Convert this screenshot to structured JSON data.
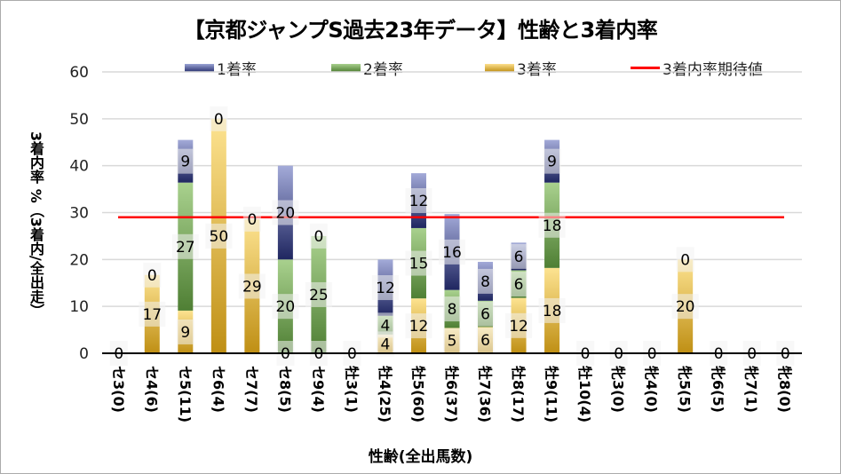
{
  "chart_data": {
    "type": "bar",
    "stacked": true,
    "title": "【京都ジャンプS過去23年データ】性齢と3着内率",
    "xlabel": "性齢(全出馬数)",
    "ylabel": "3着内率 %（3着内/全出走）",
    "ylim": [
      0,
      60
    ],
    "yticks": [
      0,
      10,
      20,
      30,
      40,
      50,
      60
    ],
    "grid": true,
    "legend_position": "top",
    "categories": [
      "セ3(0)",
      "セ4(6)",
      "セ5(11)",
      "セ6(4)",
      "セ7(7)",
      "セ8(5)",
      "セ9(4)",
      "牡3(1)",
      "牡4(25)",
      "牡5(60)",
      "牡6(37)",
      "牡7(36)",
      "牡8(17)",
      "牡9(11)",
      "牡10(4)",
      "牝3(0)",
      "牝4(0)",
      "牝5(5)",
      "牝6(5)",
      "牝7(1)",
      "牝8(0)"
    ],
    "series": [
      {
        "name": "3着率",
        "color": "#e6b84a",
        "values": [
          0,
          16.7,
          9.1,
          50,
          28.6,
          0,
          0,
          0,
          4,
          11.7,
          5.4,
          5.6,
          11.8,
          18.2,
          0,
          0,
          0,
          20,
          0,
          0,
          0
        ],
        "labels": [
          null,
          "17",
          "9",
          "50",
          "29",
          "0",
          "0",
          null,
          "4",
          "12",
          "5",
          "6",
          "12",
          "18",
          null,
          null,
          null,
          "20",
          null,
          null,
          null
        ]
      },
      {
        "name": "2着率",
        "color": "#6a9a4e",
        "values": [
          0,
          0,
          27.3,
          0,
          0,
          20,
          25,
          0,
          4,
          15,
          8.1,
          5.6,
          5.9,
          18.2,
          0,
          0,
          0,
          0,
          0,
          0,
          0
        ],
        "labels": [
          null,
          null,
          "27",
          null,
          null,
          "20",
          "25",
          null,
          "4",
          "15",
          "8",
          "6",
          "6",
          "18",
          null,
          null,
          null,
          null,
          null,
          null,
          null
        ]
      },
      {
        "name": "1着率",
        "color": "#3b4a8f",
        "values": [
          0,
          0,
          9.1,
          0,
          0,
          20,
          0,
          0,
          12,
          11.7,
          16.2,
          8.3,
          5.9,
          9.1,
          0,
          0,
          0,
          0,
          0,
          0,
          0
        ],
        "labels": [
          "0",
          "0",
          "9",
          "0",
          "0",
          "20",
          "0",
          "0",
          "12",
          "12",
          "16",
          "8",
          "6",
          "9",
          "0",
          "0",
          "0",
          "0",
          "0",
          "0",
          "0"
        ]
      }
    ],
    "reference_line": {
      "name": "3着内率期待値",
      "value": 29,
      "color": "#ff0000"
    }
  },
  "legend": {
    "items": [
      "1着率",
      "2着率",
      "3着率",
      "3着内率期待値"
    ]
  }
}
